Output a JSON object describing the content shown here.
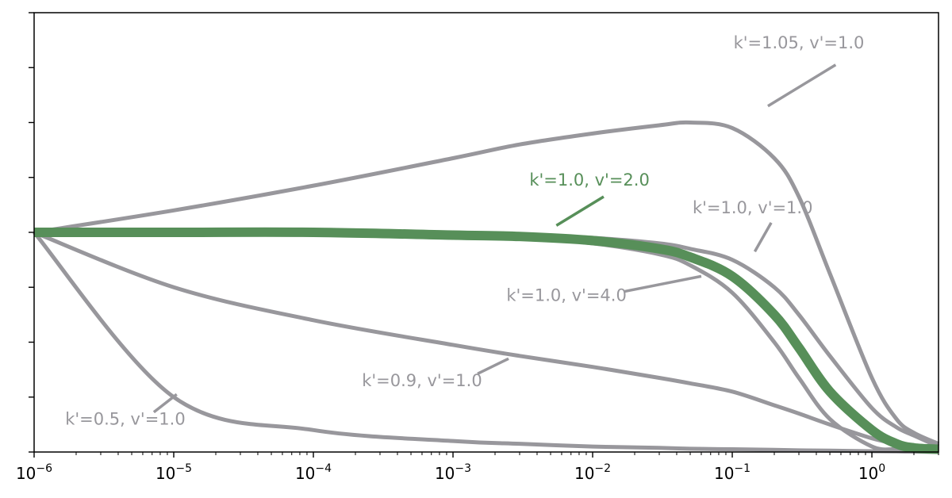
{
  "chart_data": {
    "type": "line",
    "title": "",
    "xlabel": "",
    "ylabel": "",
    "xscale": "log",
    "xlim": [
      1e-06,
      3
    ],
    "ylim": [
      0,
      1.6
    ],
    "grid": false,
    "legend": "none",
    "colors": {
      "gray": "#98979c",
      "highlight": "#578f59"
    },
    "x_ticks": [
      {
        "base": "10",
        "exp": "−6"
      },
      {
        "base": "10",
        "exp": "−5"
      },
      {
        "base": "10",
        "exp": "−4"
      },
      {
        "base": "10",
        "exp": "−3"
      },
      {
        "base": "10",
        "exp": "−2"
      },
      {
        "base": "10",
        "exp": "−1"
      },
      {
        "base": "10",
        "exp": "0"
      }
    ],
    "x": [
      1e-06,
      1e-05,
      0.0001,
      0.001,
      0.003,
      0.01,
      0.03,
      0.05,
      0.1,
      0.2,
      0.3,
      0.5,
      1,
      1.5,
      2,
      3
    ],
    "series": [
      {
        "label": "k'=1.05, v'=1.0",
        "highlight": false,
        "values": [
          0.8,
          0.88,
          0.97,
          1.07,
          1.12,
          1.16,
          1.19,
          1.2,
          1.18,
          1.07,
          0.93,
          0.65,
          0.27,
          0.12,
          0.07,
          0.03
        ]
      },
      {
        "label": "k'=1.0, v'=1.0",
        "highlight": false,
        "values": [
          0.8,
          0.8,
          0.8,
          0.795,
          0.79,
          0.78,
          0.76,
          0.74,
          0.7,
          0.6,
          0.5,
          0.35,
          0.16,
          0.09,
          0.06,
          0.02
        ]
      },
      {
        "label": "k'=1.0, v'=2.0",
        "highlight": true,
        "values": [
          0.8,
          0.8,
          0.8,
          0.79,
          0.785,
          0.77,
          0.74,
          0.71,
          0.64,
          0.5,
          0.38,
          0.22,
          0.08,
          0.03,
          0.015,
          0.01
        ]
      },
      {
        "label": "k'=1.0, v'=4.0",
        "highlight": false,
        "values": [
          0.8,
          0.8,
          0.8,
          0.79,
          0.78,
          0.76,
          0.72,
          0.68,
          0.58,
          0.4,
          0.27,
          0.12,
          0.02,
          0.01,
          0.005,
          0.0
        ]
      },
      {
        "label": "k'=0.9, v'=1.0",
        "highlight": false,
        "values": [
          0.8,
          0.6,
          0.48,
          0.39,
          0.35,
          0.31,
          0.27,
          0.25,
          0.22,
          0.17,
          0.14,
          0.1,
          0.05,
          0.03,
          0.02,
          0.01
        ]
      },
      {
        "label": "k'=0.5, v'=1.0",
        "highlight": false,
        "values": [
          0.8,
          0.2,
          0.08,
          0.04,
          0.03,
          0.02,
          0.015,
          0.012,
          0.01,
          0.008,
          0.006,
          0.005,
          0.003,
          0.002,
          0.001,
          0.0
        ]
      }
    ],
    "annotations": [
      {
        "text": "k'=1.05, v'=1.0",
        "series": 0,
        "text_x": 0.3,
        "text_y": 1.47,
        "anchor": "middle",
        "ptr_x": 0.18,
        "ptr_y": 1.26,
        "ptr_end_x": 0.55,
        "ptr_end_y": 1.41
      },
      {
        "text": "k'=1.0, v'=1.0",
        "series": 1,
        "text_x": 0.14,
        "text_y": 0.87,
        "anchor": "middle",
        "ptr_x": 0.145,
        "ptr_y": 0.73,
        "ptr_end_x": 0.19,
        "ptr_end_y": 0.835
      },
      {
        "text": "k'=1.0, v'=2.0",
        "series": 2,
        "text_x": 0.0095,
        "text_y": 0.97,
        "anchor": "middle",
        "ptr_x": 0.0055,
        "ptr_y": 0.825,
        "ptr_end_x": 0.012,
        "ptr_end_y": 0.93
      },
      {
        "text": "k'=1.0, v'=4.0",
        "series": 3,
        "text_x": 0.0065,
        "text_y": 0.55,
        "anchor": "middle",
        "ptr_x": 0.06,
        "ptr_y": 0.64,
        "ptr_end_x": 0.017,
        "ptr_end_y": 0.585
      },
      {
        "text": "k'=0.9, v'=1.0",
        "series": 4,
        "text_x": 0.0006,
        "text_y": 0.24,
        "anchor": "middle",
        "ptr_x": 0.0025,
        "ptr_y": 0.34,
        "ptr_end_x": 0.0015,
        "ptr_end_y": 0.285
      },
      {
        "text": "k'=0.5, v'=1.0",
        "series": 5,
        "text_x": 4.5e-06,
        "text_y": 0.1,
        "anchor": "middle",
        "ptr_x": 1.05e-05,
        "ptr_y": 0.21,
        "ptr_end_x": 7.2e-06,
        "ptr_end_y": 0.145
      }
    ]
  }
}
